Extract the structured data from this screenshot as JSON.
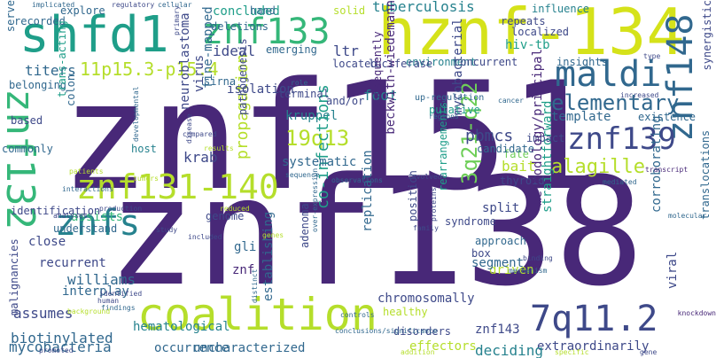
{
  "word_cloud": {
    "palette": [
      "#440154",
      "#482878",
      "#3e4989",
      "#31688e",
      "#26828e",
      "#1f9e89",
      "#35b779",
      "#6ece58",
      "#b5de2b",
      "#fde725"
    ],
    "words": [
      {
        "text": "znf151",
        "color": "#482878"
      },
      {
        "text": "znf138",
        "color": "#482878"
      },
      {
        "text": "coalition",
        "color": "#b5de2b"
      },
      {
        "text": "hznf-134",
        "color": "#d5e21a"
      },
      {
        "text": "shfd1",
        "color": "#1f9e89"
      },
      {
        "text": "znf133",
        "color": "#35b779"
      },
      {
        "text": "znf132",
        "color": "#35b779"
      },
      {
        "text": "znf131-140",
        "color": "#b5de2b"
      },
      {
        "text": "znf148",
        "color": "#31688e"
      },
      {
        "text": "maldi",
        "color": "#31688e"
      },
      {
        "text": "znf139",
        "color": "#3e4989"
      },
      {
        "text": "7q11.2",
        "color": "#3e4989"
      },
      {
        "text": "znfs",
        "color": "#26828e"
      },
      {
        "text": "elementary",
        "color": "#31688e"
      },
      {
        "text": "alagille",
        "color": "#b5de2b"
      },
      {
        "text": "11p15.3-p15.4",
        "color": "#b5de2b"
      },
      {
        "text": "tuberculosis",
        "color": "#26828e"
      },
      {
        "text": "19q13",
        "color": "#b5de2b"
      },
      {
        "text": "3q21-q22",
        "color": "#6ece58"
      },
      {
        "text": "titers",
        "color": "#31688e"
      },
      {
        "text": "ideal",
        "color": "#3e4989"
      },
      {
        "text": "ltr",
        "color": "#3e4989"
      },
      {
        "text": "foot",
        "color": "#26828e"
      },
      {
        "text": "pbmcs",
        "color": "#3e4989"
      },
      {
        "text": "krab",
        "color": "#3e4989"
      },
      {
        "text": "hiv-tb",
        "color": "#1f9e89"
      },
      {
        "text": "kruppel",
        "color": "#26828e"
      },
      {
        "text": "template",
        "color": "#31688e"
      },
      {
        "text": "biotinylated",
        "color": "#31688e"
      },
      {
        "text": "assumes",
        "color": "#3e4989"
      },
      {
        "text": "williams",
        "color": "#31688e"
      },
      {
        "text": "mycobacteria",
        "color": "#31688e"
      },
      {
        "text": "hematological",
        "color": "#26828e"
      },
      {
        "text": "co-infections",
        "color": "#1f9e89"
      },
      {
        "text": "uncharacterized",
        "color": "#31688e"
      },
      {
        "text": "extraordinarily",
        "color": "#3e4989"
      },
      {
        "text": "deciding",
        "color": "#26828e"
      },
      {
        "text": "znf143",
        "color": "#3e4989"
      },
      {
        "text": "beckwith-wiedemann",
        "color": "#482878"
      },
      {
        "text": "mycobacterial",
        "color": "#3e4989"
      },
      {
        "text": "straightforward",
        "color": "#1f9e89"
      },
      {
        "text": "corroborating",
        "color": "#31688e"
      },
      {
        "text": "propagation",
        "color": "#b5de2b"
      },
      {
        "text": "effectors",
        "color": "#b5de2b"
      },
      {
        "text": "assists",
        "color": "#35b779"
      },
      {
        "text": "interplay",
        "color": "#31688e"
      },
      {
        "text": "systematic",
        "color": "#31688e"
      },
      {
        "text": "chromosomally",
        "color": "#3e4989"
      },
      {
        "text": "occurrence",
        "color": "#31688e"
      },
      {
        "text": "split",
        "color": "#3e4989"
      },
      {
        "text": "bait",
        "color": "#b5de2b"
      },
      {
        "text": "maldi-2",
        "color": "#26828e"
      },
      {
        "text": "belonging",
        "color": "#31688e"
      },
      {
        "text": "recorded",
        "color": "#31688e"
      },
      {
        "text": "isolation",
        "color": "#3e4989"
      },
      {
        "text": "host",
        "color": "#26828e"
      },
      {
        "text": "recurrent",
        "color": "#3e4989"
      },
      {
        "text": "close",
        "color": "#3e4989"
      },
      {
        "text": "understand",
        "color": "#31688e"
      },
      {
        "text": "identification",
        "color": "#3e4989"
      },
      {
        "text": "malignancies",
        "color": "#3e4989"
      },
      {
        "text": "concluded",
        "color": "#1f9e89"
      },
      {
        "text": "solid",
        "color": "#b5de2b"
      },
      {
        "text": "hand",
        "color": "#31688e"
      },
      {
        "text": "deletions",
        "color": "#31688e"
      },
      {
        "text": "emerging",
        "color": "#31688e"
      },
      {
        "text": "located",
        "color": "#3e4989"
      },
      {
        "text": "environment",
        "color": "#26828e"
      },
      {
        "text": "luciferase",
        "color": "#3e4989"
      },
      {
        "text": "concurrent",
        "color": "#3e4989"
      },
      {
        "text": "repeats",
        "color": "#3e4989"
      },
      {
        "text": "localized",
        "color": "#3e4989"
      },
      {
        "text": "influence",
        "color": "#26828e"
      },
      {
        "text": "insights",
        "color": "#31688e"
      },
      {
        "text": "synergistic",
        "color": "#3e4989"
      },
      {
        "text": "existence",
        "color": "#31688e"
      },
      {
        "text": "translocations",
        "color": "#31688e"
      },
      {
        "text": "approach",
        "color": "#31688e"
      },
      {
        "text": "driven",
        "color": "#b5de2b"
      },
      {
        "text": "healthy",
        "color": "#b5de2b"
      },
      {
        "text": "position",
        "color": "#3e4989"
      },
      {
        "text": "replication",
        "color": "#31688e"
      },
      {
        "text": "adenoma",
        "color": "#3e4989"
      },
      {
        "text": "box",
        "color": "#3e4989"
      },
      {
        "text": "segment",
        "color": "#31688e"
      },
      {
        "text": "syndrome",
        "color": "#3e4989"
      },
      {
        "text": "thyroid",
        "color": "#3e4989"
      },
      {
        "text": "fate",
        "color": "#6ece58"
      },
      {
        "text": "candidate",
        "color": "#31688e"
      },
      {
        "text": "impact",
        "color": "#3e4989"
      },
      {
        "text": "putative",
        "color": "#1f9e89"
      },
      {
        "text": "rearrangements",
        "color": "#1f9e89"
      },
      {
        "text": "subsequently",
        "color": "#482878"
      },
      {
        "text": "neuroblastoma",
        "color": "#3e4989"
      },
      {
        "text": "fine-mapped",
        "color": "#31688e"
      },
      {
        "text": "virus",
        "color": "#3e4989"
      },
      {
        "text": "pathogenesis",
        "color": "#3e4989"
      },
      {
        "text": "sirna",
        "color": "#31688e"
      },
      {
        "text": "terminal",
        "color": "#3e4989"
      },
      {
        "text": "gli",
        "color": "#31688e"
      },
      {
        "text": "genome",
        "color": "#3e4989"
      },
      {
        "text": "znf",
        "color": "#482878"
      },
      {
        "text": "establishing",
        "color": "#31688e"
      },
      {
        "text": "disorders",
        "color": "#3e4989"
      },
      {
        "text": "methodology/principal",
        "color": "#482878"
      },
      {
        "text": "viral",
        "color": "#3e4989"
      },
      {
        "text": "serve",
        "color": "#31688e"
      },
      {
        "text": "explore",
        "color": "#31688e"
      },
      {
        "text": "based",
        "color": "#3e4989"
      },
      {
        "text": "colon",
        "color": "#31688e"
      },
      {
        "text": "trans-acting",
        "color": "#1f9e89"
      },
      {
        "text": "commonly",
        "color": "#31688e"
      },
      {
        "text": "and/or",
        "color": "#3e4989"
      },
      {
        "text": "up-regulation",
        "color": "#31688e"
      },
      {
        "text": "regions",
        "color": "#31688e"
      },
      {
        "text": "cancer",
        "color": "#31688e"
      },
      {
        "text": "increased",
        "color": "#3e4989"
      },
      {
        "text": "transcript",
        "color": "#482878"
      },
      {
        "text": "knockdown",
        "color": "#482878"
      },
      {
        "text": "molecular",
        "color": "#31688e"
      },
      {
        "text": "type",
        "color": "#3e4989"
      },
      {
        "text": "implicated",
        "color": "#31688e"
      },
      {
        "text": "regulatory",
        "color": "#3e4989"
      },
      {
        "text": "cellular",
        "color": "#31688e"
      },
      {
        "text": "primary",
        "color": "#3e4989"
      },
      {
        "text": "role",
        "color": "#31688e"
      },
      {
        "text": "developmental",
        "color": "#31688e"
      },
      {
        "text": "compared",
        "color": "#3e4989"
      },
      {
        "text": "patients",
        "color": "#b5de2b"
      },
      {
        "text": "disease",
        "color": "#3e4989"
      },
      {
        "text": "results",
        "color": "#b5de2b"
      },
      {
        "text": "tumors",
        "color": "#b5de2b"
      },
      {
        "text": "interactions",
        "color": "#31688e"
      },
      {
        "text": "production",
        "color": "#3e4989"
      },
      {
        "text": "reduced",
        "color": "#b5de2b"
      },
      {
        "text": "sequence",
        "color": "#31688e"
      },
      {
        "text": "observations",
        "color": "#31688e"
      },
      {
        "text": "involved",
        "color": "#3e4989"
      },
      {
        "text": "mediated",
        "color": "#31688e"
      },
      {
        "text": "analyses",
        "color": "#3e4989"
      },
      {
        "text": "study",
        "color": "#3e4989"
      },
      {
        "text": "included",
        "color": "#3e4989"
      },
      {
        "text": "genes",
        "color": "#b5de2b"
      },
      {
        "text": "over-expression",
        "color": "#31688e"
      },
      {
        "text": "proteins",
        "color": "#3e4989"
      },
      {
        "text": "family",
        "color": "#3e4989"
      },
      {
        "text": "binding",
        "color": "#3e4989"
      },
      {
        "text": "mechanism",
        "color": "#31688e"
      },
      {
        "text": "identified",
        "color": "#3e4989"
      },
      {
        "text": "human",
        "color": "#3e4989"
      },
      {
        "text": "findings",
        "color": "#31688e"
      },
      {
        "text": "background",
        "color": "#b5de2b"
      },
      {
        "text": "distinct",
        "color": "#31688e"
      },
      {
        "text": "controls",
        "color": "#31688e"
      },
      {
        "text": "conclusions/significance",
        "color": "#31688e"
      },
      {
        "text": "promoted",
        "color": "#3e4989"
      },
      {
        "text": "addition",
        "color": "#b5de2b"
      },
      {
        "text": "specific",
        "color": "#b5de2b"
      },
      {
        "text": "gene",
        "color": "#3e4989"
      },
      {
        "text": "function",
        "color": "#3e4989"
      },
      {
        "text": "expression",
        "color": "#31688e"
      },
      {
        "text": "clusters",
        "color": "#3e4989"
      },
      {
        "text": "finding",
        "color": "#31688e"
      },
      {
        "text": "chromosome",
        "color": "#31688e"
      },
      {
        "text": "zinc",
        "color": "#3e4989"
      },
      {
        "text": "finger",
        "color": "#3e4989"
      },
      {
        "text": "krüppel",
        "color": "#3e4989"
      }
    ]
  }
}
